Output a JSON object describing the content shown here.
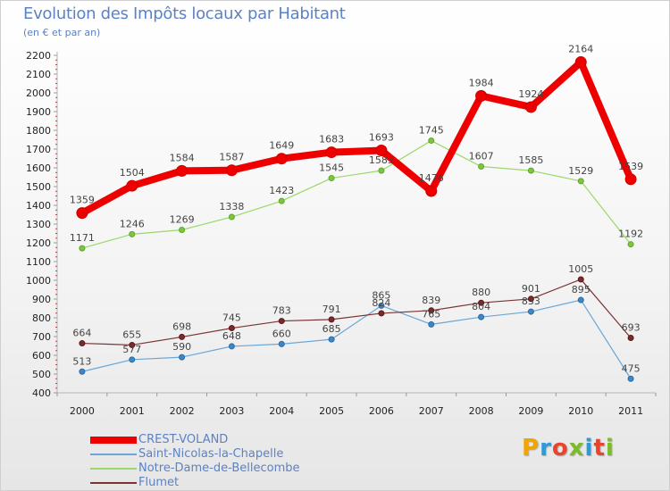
{
  "title": "Evolution des Impôts locaux par Habitant",
  "subtitle": "(en € et par an)",
  "logo_text": "Proxiti",
  "logo_colors": [
    "#f0a500",
    "#2e9ad6",
    "#e8452c",
    "#7dbb2a",
    "#2e9ad6",
    "#e8452c",
    "#7dbb2a"
  ],
  "chart_data": {
    "type": "line",
    "title": "Evolution des Impôts locaux par Habitant",
    "subtitle": "(en € et par an)",
    "xlabel": "",
    "ylabel": "",
    "ylim": [
      400,
      2200
    ],
    "y_ticks": [
      400,
      500,
      600,
      700,
      800,
      900,
      1000,
      1100,
      1200,
      1300,
      1400,
      1500,
      1600,
      1700,
      1800,
      1900,
      2000,
      2100,
      2200
    ],
    "x": [
      "2000",
      "2001",
      "2002",
      "2003",
      "2004",
      "2005",
      "2006",
      "2007",
      "2008",
      "2009",
      "2010",
      "2011"
    ],
    "grid": false,
    "legend_position": "bottom-left",
    "series": [
      {
        "name": "CREST-VOLAND",
        "color": "#ee0000",
        "values": [
          1359,
          1504,
          1584,
          1587,
          1649,
          1683,
          1693,
          1476,
          1984,
          1924,
          2164,
          1539
        ]
      },
      {
        "name": "Saint-Nicolas-la-Chapelle",
        "color": "#6aa6d6",
        "values": [
          513,
          577,
          590,
          648,
          660,
          685,
          865,
          765,
          804,
          833,
          895,
          475
        ]
      },
      {
        "name": "Notre-Dame-de-Bellecombe",
        "color": "#9bd86a",
        "values": [
          1171,
          1246,
          1269,
          1338,
          1423,
          1545,
          1585,
          1745,
          1607,
          1585,
          1529,
          1192
        ]
      },
      {
        "name": "Flumet",
        "color": "#7a3434",
        "values": [
          664,
          655,
          698,
          745,
          783,
          791,
          824,
          839,
          880,
          901,
          1005,
          693
        ]
      }
    ]
  }
}
